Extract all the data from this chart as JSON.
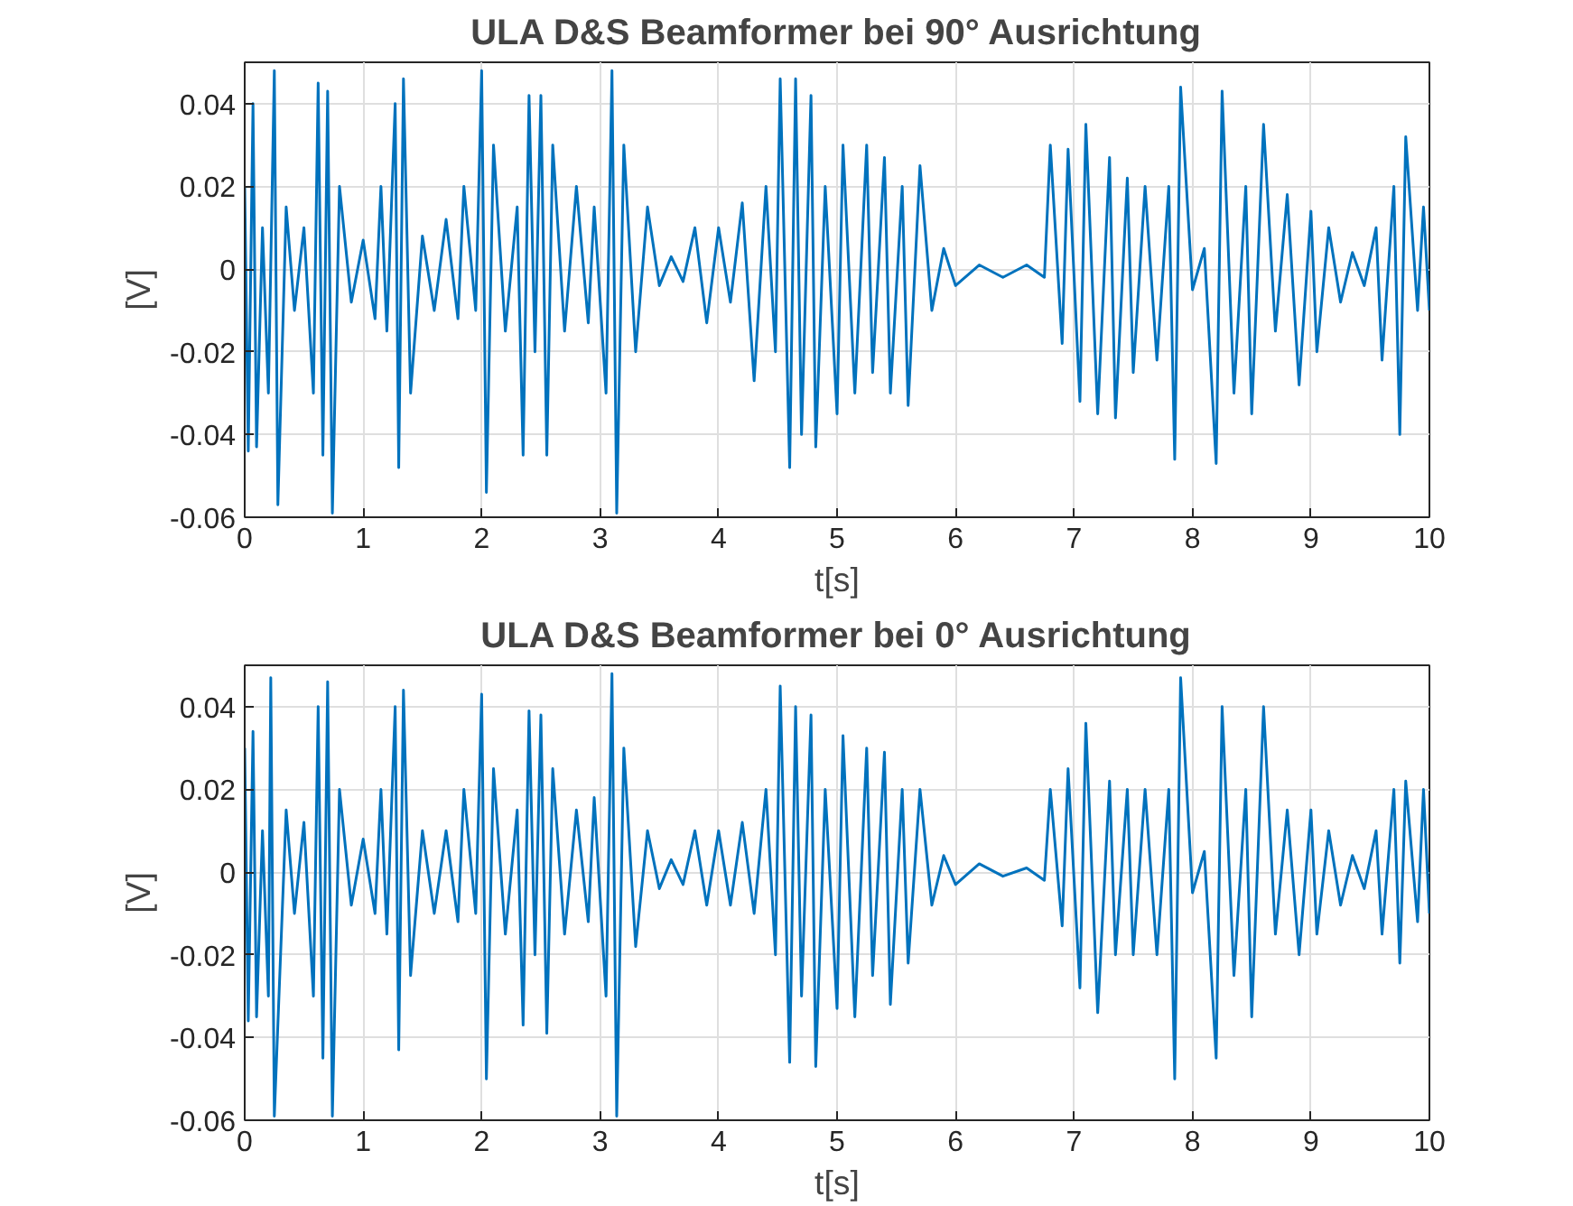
{
  "chart_data": [
    {
      "type": "line",
      "title": "ULA D&S Beamformer bei 90° Ausrichtung",
      "xlabel": "t[s]",
      "ylabel": "[V]",
      "xlim": [
        0,
        10
      ],
      "ylim": [
        -0.06,
        0.05
      ],
      "xticks": [
        0,
        1,
        2,
        3,
        4,
        5,
        6,
        7,
        8,
        9,
        10
      ],
      "yticks": [
        -0.06,
        -0.04,
        -0.02,
        0,
        0.02,
        0.04
      ],
      "grid": true,
      "line_style": "solid",
      "marker": "none",
      "x": [
        0,
        0.03,
        0.07,
        0.1,
        0.15,
        0.2,
        0.25,
        0.28,
        0.35,
        0.42,
        0.5,
        0.58,
        0.62,
        0.66,
        0.7,
        0.74,
        0.8,
        0.9,
        1.0,
        1.1,
        1.15,
        1.2,
        1.27,
        1.3,
        1.34,
        1.4,
        1.5,
        1.6,
        1.7,
        1.8,
        1.85,
        1.95,
        2.0,
        2.04,
        2.1,
        2.2,
        2.3,
        2.35,
        2.4,
        2.45,
        2.5,
        2.55,
        2.6,
        2.7,
        2.8,
        2.9,
        2.95,
        3.05,
        3.1,
        3.14,
        3.2,
        3.3,
        3.4,
        3.5,
        3.6,
        3.7,
        3.8,
        3.9,
        4.0,
        4.1,
        4.2,
        4.3,
        4.4,
        4.48,
        4.52,
        4.6,
        4.65,
        4.7,
        4.78,
        4.82,
        4.9,
        5.0,
        5.05,
        5.15,
        5.25,
        5.3,
        5.4,
        5.45,
        5.55,
        5.6,
        5.7,
        5.8,
        5.9,
        6.0,
        6.2,
        6.4,
        6.6,
        6.75,
        6.8,
        6.9,
        6.95,
        7.05,
        7.1,
        7.2,
        7.3,
        7.35,
        7.45,
        7.5,
        7.6,
        7.7,
        7.8,
        7.85,
        7.9,
        8.0,
        8.1,
        8.2,
        8.25,
        8.35,
        8.45,
        8.5,
        8.6,
        8.7,
        8.8,
        8.9,
        9.0,
        9.05,
        9.15,
        9.25,
        9.35,
        9.45,
        9.55,
        9.6,
        9.7,
        9.75,
        9.8,
        9.9,
        9.95,
        10.0
      ],
      "series": [
        {
          "color": "#0072bd",
          "values": [
            0.02,
            -0.044,
            0.04,
            -0.043,
            0.01,
            -0.03,
            0.048,
            -0.057,
            0.015,
            -0.01,
            0.01,
            -0.03,
            0.045,
            -0.045,
            0.043,
            -0.059,
            0.02,
            -0.008,
            0.007,
            -0.012,
            0.02,
            -0.015,
            0.04,
            -0.048,
            0.046,
            -0.03,
            0.008,
            -0.01,
            0.012,
            -0.012,
            0.02,
            -0.01,
            0.048,
            -0.054,
            0.03,
            -0.015,
            0.015,
            -0.045,
            0.042,
            -0.02,
            0.042,
            -0.045,
            0.03,
            -0.015,
            0.02,
            -0.013,
            0.015,
            -0.03,
            0.048,
            -0.059,
            0.03,
            -0.02,
            0.015,
            -0.004,
            0.003,
            -0.003,
            0.01,
            -0.013,
            0.01,
            -0.008,
            0.016,
            -0.027,
            0.02,
            -0.02,
            0.046,
            -0.048,
            0.046,
            -0.04,
            0.042,
            -0.043,
            0.02,
            -0.035,
            0.03,
            -0.03,
            0.03,
            -0.025,
            0.027,
            -0.03,
            0.02,
            -0.033,
            0.025,
            -0.01,
            0.005,
            -0.004,
            0.001,
            -0.002,
            0.001,
            -0.002,
            0.03,
            -0.018,
            0.029,
            -0.032,
            0.035,
            -0.035,
            0.027,
            -0.036,
            0.022,
            -0.025,
            0.02,
            -0.022,
            0.02,
            -0.046,
            0.044,
            -0.005,
            0.005,
            -0.047,
            0.043,
            -0.03,
            0.02,
            -0.035,
            0.035,
            -0.015,
            0.018,
            -0.028,
            0.014,
            -0.02,
            0.01,
            -0.008,
            0.004,
            -0.004,
            0.01,
            -0.022,
            0.02,
            -0.04,
            0.032,
            -0.01,
            0.015,
            -0.01
          ]
        }
      ]
    },
    {
      "type": "line",
      "title": "ULA D&S Beamformer bei 0° Ausrichtung",
      "xlabel": "t[s]",
      "ylabel": "[V]",
      "xlim": [
        0,
        10
      ],
      "ylim": [
        -0.06,
        0.05
      ],
      "xticks": [
        0,
        1,
        2,
        3,
        4,
        5,
        6,
        7,
        8,
        9,
        10
      ],
      "yticks": [
        -0.06,
        -0.04,
        -0.02,
        0,
        0.02,
        0.04
      ],
      "grid": true,
      "line_style": "solid",
      "marker": "none",
      "x": [
        0,
        0.03,
        0.07,
        0.1,
        0.15,
        0.2,
        0.22,
        0.25,
        0.35,
        0.42,
        0.5,
        0.58,
        0.62,
        0.66,
        0.7,
        0.74,
        0.8,
        0.9,
        1.0,
        1.1,
        1.15,
        1.2,
        1.27,
        1.3,
        1.34,
        1.4,
        1.5,
        1.6,
        1.7,
        1.8,
        1.85,
        1.95,
        2.0,
        2.04,
        2.1,
        2.2,
        2.3,
        2.35,
        2.4,
        2.45,
        2.5,
        2.55,
        2.6,
        2.7,
        2.8,
        2.9,
        2.95,
        3.05,
        3.1,
        3.14,
        3.2,
        3.3,
        3.4,
        3.5,
        3.6,
        3.7,
        3.8,
        3.9,
        4.0,
        4.1,
        4.2,
        4.3,
        4.4,
        4.48,
        4.52,
        4.6,
        4.65,
        4.7,
        4.78,
        4.82,
        4.9,
        5.0,
        5.05,
        5.15,
        5.25,
        5.3,
        5.4,
        5.45,
        5.55,
        5.6,
        5.7,
        5.8,
        5.9,
        6.0,
        6.2,
        6.4,
        6.6,
        6.75,
        6.8,
        6.9,
        6.95,
        7.05,
        7.1,
        7.2,
        7.3,
        7.35,
        7.45,
        7.5,
        7.6,
        7.7,
        7.8,
        7.85,
        7.9,
        8.0,
        8.1,
        8.2,
        8.25,
        8.35,
        8.45,
        8.5,
        8.6,
        8.7,
        8.8,
        8.9,
        9.0,
        9.05,
        9.15,
        9.25,
        9.35,
        9.45,
        9.55,
        9.6,
        9.7,
        9.75,
        9.8,
        9.9,
        9.95,
        10.0
      ],
      "series": [
        {
          "color": "#0072bd",
          "values": [
            0.03,
            -0.036,
            0.034,
            -0.035,
            0.01,
            -0.03,
            0.047,
            -0.059,
            0.015,
            -0.01,
            0.012,
            -0.03,
            0.04,
            -0.045,
            0.046,
            -0.059,
            0.02,
            -0.008,
            0.008,
            -0.01,
            0.02,
            -0.015,
            0.04,
            -0.043,
            0.044,
            -0.025,
            0.01,
            -0.01,
            0.01,
            -0.012,
            0.02,
            -0.01,
            0.043,
            -0.05,
            0.025,
            -0.015,
            0.015,
            -0.037,
            0.039,
            -0.02,
            0.038,
            -0.039,
            0.025,
            -0.015,
            0.015,
            -0.012,
            0.018,
            -0.03,
            0.048,
            -0.059,
            0.03,
            -0.018,
            0.01,
            -0.004,
            0.003,
            -0.003,
            0.01,
            -0.008,
            0.01,
            -0.008,
            0.012,
            -0.01,
            0.02,
            -0.02,
            0.045,
            -0.046,
            0.04,
            -0.03,
            0.038,
            -0.047,
            0.02,
            -0.033,
            0.033,
            -0.035,
            0.03,
            -0.025,
            0.029,
            -0.032,
            0.02,
            -0.022,
            0.02,
            -0.008,
            0.004,
            -0.003,
            0.002,
            -0.001,
            0.001,
            -0.002,
            0.02,
            -0.013,
            0.025,
            -0.028,
            0.036,
            -0.034,
            0.022,
            -0.02,
            0.02,
            -0.02,
            0.02,
            -0.02,
            0.02,
            -0.05,
            0.047,
            -0.005,
            0.005,
            -0.045,
            0.04,
            -0.025,
            0.02,
            -0.035,
            0.04,
            -0.015,
            0.015,
            -0.02,
            0.015,
            -0.015,
            0.01,
            -0.008,
            0.004,
            -0.004,
            0.01,
            -0.015,
            0.02,
            -0.022,
            0.022,
            -0.012,
            0.02,
            -0.01
          ]
        }
      ]
    }
  ]
}
